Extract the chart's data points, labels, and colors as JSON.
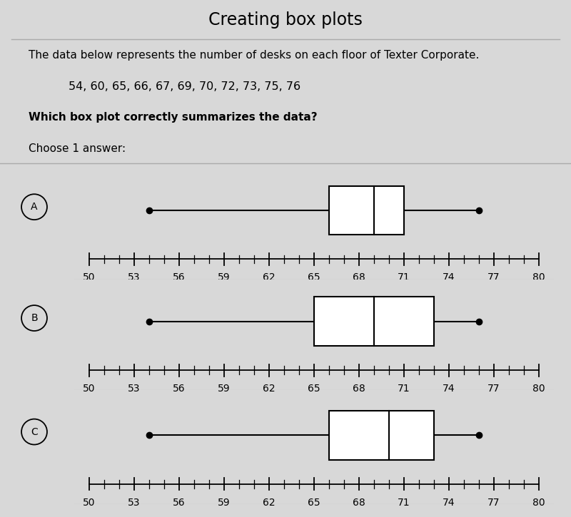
{
  "title": "Creating box plots",
  "description_line1": "The data below represents the number of desks on each floor of Texter Corporate.",
  "data_line": "54, 60, 65, 66, 67, 69, 70, 72, 73, 75, 76",
  "question": "Which box plot correctly summarizes the data?",
  "choose": "Choose 1 answer:",
  "bg_color": "#d8d8d8",
  "box_plots": [
    {
      "label": "A",
      "min": 54,
      "q1": 66,
      "median": 69,
      "q3": 71,
      "max": 76
    },
    {
      "label": "B",
      "min": 54,
      "q1": 65,
      "median": 69,
      "q3": 73,
      "max": 76
    },
    {
      "label": "C",
      "min": 54,
      "q1": 66,
      "median": 70,
      "q3": 73,
      "max": 76
    }
  ],
  "xmin": 49,
  "xmax": 81,
  "xticks": [
    50,
    53,
    56,
    59,
    62,
    65,
    68,
    71,
    74,
    77,
    80
  ],
  "tick_fontsize": 10,
  "title_fontsize": 17,
  "body_fontsize": 11
}
